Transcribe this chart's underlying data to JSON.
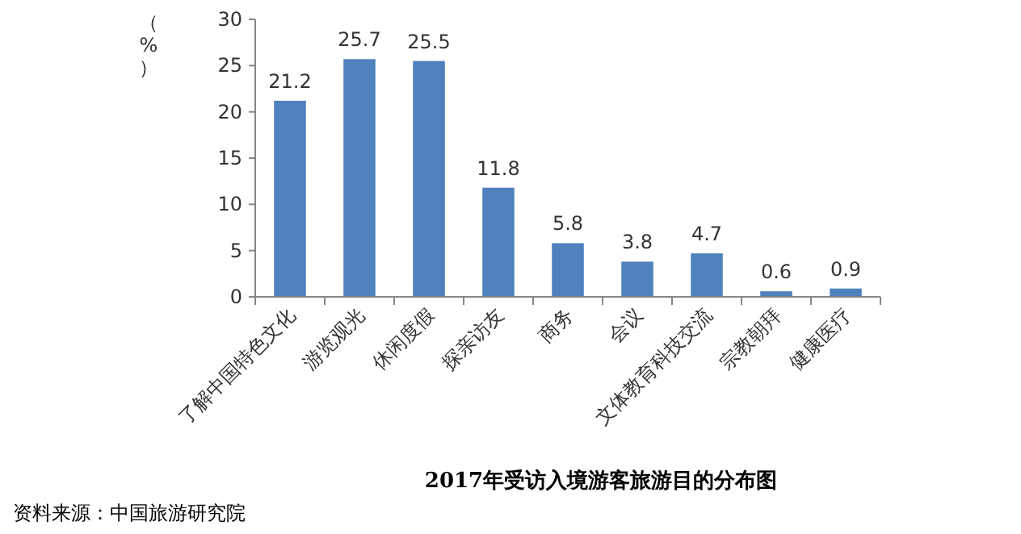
{
  "chart_data": {
    "type": "bar",
    "title": "2017年受访入境游客旅游目的分布图",
    "ylabel": "（%）",
    "categories": [
      "了解中国特色文化",
      "游览观光",
      "休闲度假",
      "探亲访友",
      "商务",
      "会议",
      "文体教育科技交流",
      "宗教朝拜",
      "健康医疗"
    ],
    "values": [
      21.2,
      25.7,
      25.5,
      11.8,
      5.8,
      3.8,
      4.7,
      0.6,
      0.9
    ],
    "color": "#4f81bd",
    "ylim": [
      0,
      30
    ],
    "yticks": [
      0,
      5,
      10,
      15,
      20,
      25,
      30
    ],
    "data_labels": true,
    "grid": false,
    "annotations": [
      "资料来源：中国旅游研究院"
    ]
  }
}
